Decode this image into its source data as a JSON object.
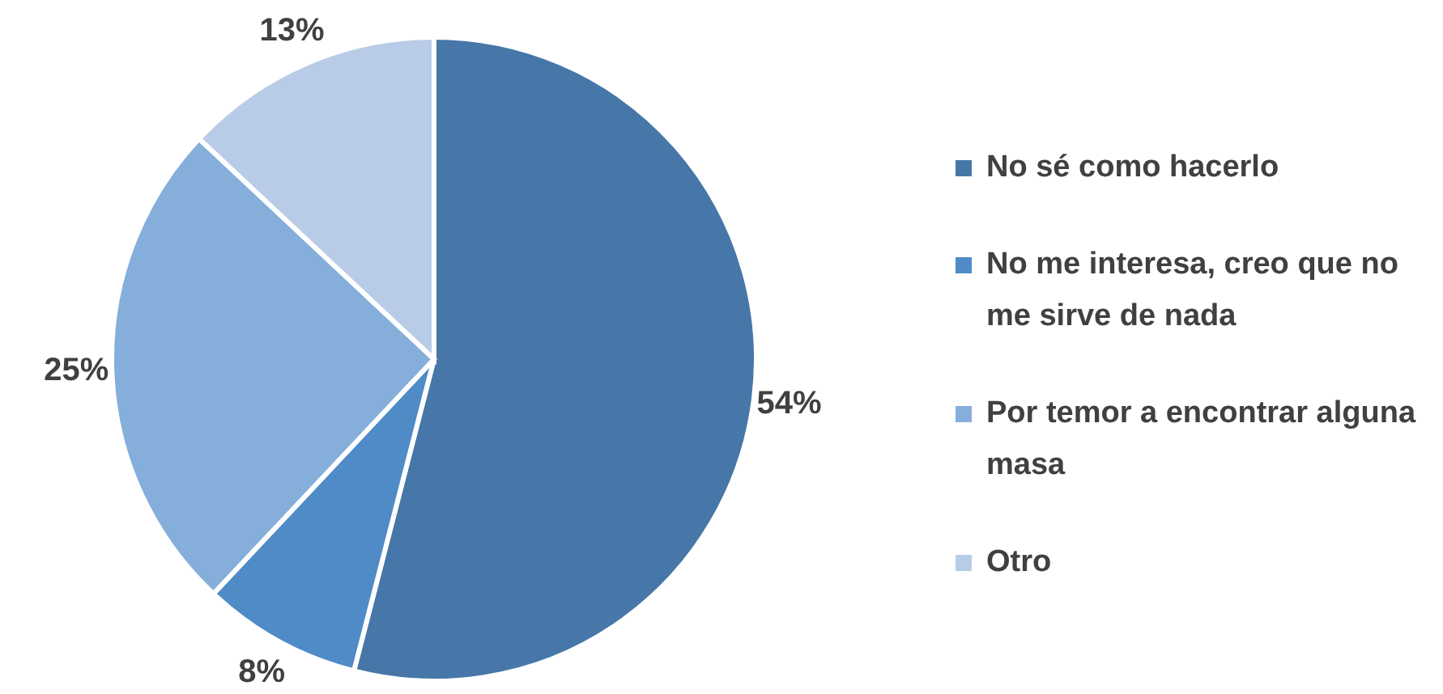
{
  "chart_data": {
    "type": "pie",
    "categories": [
      "No sé como hacerlo",
      "No me interesa, creo que no me sirve de nada",
      "Por temor a encontrar alguna masa",
      "Otro"
    ],
    "values": [
      54,
      8,
      25,
      13
    ],
    "colors": [
      "#4677a8",
      "#4f8bc6",
      "#85aedb",
      "#b8cce8"
    ],
    "value_labels": [
      "54%",
      "8%",
      "25%",
      "13%"
    ],
    "legend": "right"
  }
}
